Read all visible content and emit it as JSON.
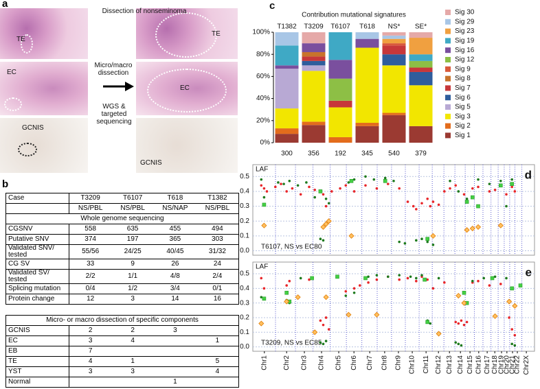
{
  "panel_a": {
    "label": "a",
    "title": "Dissection of nonseminoma",
    "left_labels": [
      "TE",
      "EC",
      "GCNIS"
    ],
    "arrow_text": "Micro/macro dissection",
    "sequencing_text": "WGS & targeted sequencing",
    "right_labels": [
      "TE",
      "EC",
      "GCNIS"
    ]
  },
  "panel_b": {
    "label": "b",
    "columns": [
      "Case",
      "T3209",
      "T6107",
      "T618",
      "T1382"
    ],
    "subheader": [
      null,
      "NS/PBL",
      "NS/PBL",
      "NS/NAP",
      "NS/PBL"
    ],
    "section1": "Whole genome sequencing",
    "rows1": [
      [
        "CGSNV",
        558,
        635,
        455,
        494
      ],
      [
        "Putative SNV",
        374,
        197,
        365,
        303
      ],
      [
        "Validated SNV/ tested",
        "55/56",
        "24/25",
        "40/45",
        "31/32"
      ],
      [
        "CG SV",
        33,
        9,
        26,
        24
      ],
      [
        "Validated SV/ tested",
        "2/2",
        "1/1",
        "4/8",
        "2/4"
      ],
      [
        "Splicing mutation",
        "0/4",
        "1/2",
        "3/4",
        "0/1"
      ],
      [
        "Protein change",
        12,
        3,
        14,
        16
      ]
    ],
    "section2": "Micro- or macro dissection of specific components",
    "rows2": [
      [
        "GCNIS",
        2,
        2,
        3,
        null
      ],
      [
        "EC",
        3,
        4,
        null,
        1
      ],
      [
        "EB",
        7,
        null,
        null,
        null
      ],
      [
        "TE",
        4,
        1,
        null,
        5
      ],
      [
        "YST",
        3,
        3,
        null,
        4
      ],
      [
        "Normal",
        null,
        null,
        1,
        null
      ]
    ]
  },
  "chart_data": [
    {
      "type": "stacked_bar",
      "label": "c",
      "title": "Contribution mutational signatures",
      "categories": [
        "T1382",
        "T3209",
        "T6107",
        "T618",
        "NS*",
        "SE*"
      ],
      "counts": [
        300,
        356,
        192,
        345,
        540,
        379
      ],
      "ylim": [
        0,
        100
      ],
      "yticks": [
        {
          "value": 0,
          "label": "0%"
        },
        {
          "value": 20,
          "label": "20%"
        },
        {
          "value": 40,
          "label": "40%"
        },
        {
          "value": 60,
          "label": "60%"
        },
        {
          "value": 80,
          "label": "80%"
        },
        {
          "value": 100,
          "label": "100%"
        }
      ],
      "series": [
        {
          "name": "Sig 1",
          "color": "#9b3a32",
          "values": [
            8,
            16,
            0,
            15,
            25,
            15
          ]
        },
        {
          "name": "Sig 2",
          "color": "#e36c1c",
          "values": [
            5,
            3,
            5,
            3,
            2,
            0
          ]
        },
        {
          "name": "Sig 3",
          "color": "#f2e600",
          "values": [
            18,
            46,
            27,
            68,
            43,
            37
          ]
        },
        {
          "name": "Sig 5",
          "color": "#b8a9d4",
          "values": [
            36,
            5,
            0,
            0,
            0,
            0
          ]
        },
        {
          "name": "Sig 6",
          "color": "#2f5d9c",
          "values": [
            0,
            4,
            0,
            0,
            10,
            12
          ]
        },
        {
          "name": "Sig 7",
          "color": "#c7373a",
          "values": [
            0,
            4,
            6,
            0,
            8,
            4
          ]
        },
        {
          "name": "Sig 8",
          "color": "#c8732c",
          "values": [
            0,
            4,
            0,
            0,
            0,
            0
          ]
        },
        {
          "name": "Sig 9",
          "color": "#d9593b",
          "values": [
            0,
            0,
            0,
            0,
            2,
            0
          ]
        },
        {
          "name": "Sig 12",
          "color": "#8dbf45",
          "values": [
            0,
            0,
            20,
            0,
            0,
            6
          ]
        },
        {
          "name": "Sig 16",
          "color": "#7a4f9e",
          "values": [
            3,
            8,
            17,
            8,
            0,
            0
          ]
        },
        {
          "name": "Sig 19",
          "color": "#3fa9c5",
          "values": [
            18,
            0,
            25,
            0,
            0,
            6
          ]
        },
        {
          "name": "Sig 23",
          "color": "#f0a040",
          "values": [
            0,
            0,
            0,
            0,
            4,
            15
          ]
        },
        {
          "name": "Sig 29",
          "color": "#a8c6e6",
          "values": [
            12,
            0,
            0,
            6,
            3,
            0
          ]
        },
        {
          "name": "Sig 30",
          "color": "#e5a9a8",
          "values": [
            0,
            10,
            0,
            0,
            3,
            5
          ]
        }
      ]
    },
    {
      "type": "scatter",
      "label": "d",
      "ylabel": "LAF",
      "annotation": "T6107, NS vs EC80",
      "xlim": [
        0,
        100
      ],
      "xticks": [
        4.1,
        12,
        18.3,
        24.4,
        30.5,
        35.9,
        41.5,
        46.8,
        51.7,
        56.6,
        61.5,
        65.9,
        69.8,
        73.7,
        77.1,
        80.2,
        83.2,
        85.9,
        88.3,
        90.2,
        92.2,
        93.9,
        97.1
      ],
      "xtick_labels_shown": false,
      "ylim": [
        -0.03,
        0.58
      ],
      "yticks": [
        {
          "value": 0,
          "label": "0.0"
        },
        0.1,
        0.2,
        0.3,
        0.4,
        0.5
      ],
      "grid": true,
      "series": [
        {
          "color": "#e8262a",
          "marker": "circle",
          "x": [
            3,
            4,
            5,
            8,
            10,
            12,
            14,
            17,
            20,
            22,
            25,
            26,
            28,
            31,
            33,
            36,
            40,
            44,
            48,
            52,
            55,
            57,
            58,
            60,
            62,
            63,
            64,
            66,
            68,
            70,
            72,
            75,
            78,
            80,
            84,
            86,
            88,
            90,
            92,
            93
          ],
          "values": [
            0.44,
            0.42,
            0.4,
            0.43,
            0.45,
            0.4,
            0.42,
            0.38,
            0.43,
            0.41,
            0.38,
            0.3,
            0.4,
            0.42,
            0.44,
            0.4,
            0.44,
            0.42,
            0.45,
            0.42,
            0.33,
            0.3,
            0.28,
            0.32,
            0.35,
            0.3,
            0.33,
            0.31,
            0.4,
            0.42,
            0.44,
            0.38,
            0.42,
            0.43,
            0.4,
            0.41,
            0.44,
            0.38,
            0.43,
            0.4
          ]
        },
        {
          "color": "#1e7a1e",
          "marker": "circle",
          "x": [
            3,
            4,
            9,
            11,
            13,
            16,
            19,
            22,
            24,
            25,
            26,
            27,
            34,
            36,
            40,
            43,
            47,
            50,
            52,
            54,
            58,
            60,
            62,
            64,
            70,
            73,
            76,
            80,
            84,
            88,
            90,
            92
          ],
          "values": [
            0.48,
            0.36,
            0.46,
            0.45,
            0.47,
            0.44,
            0.46,
            0.36,
            0.08,
            0.07,
            0.35,
            0.32,
            0.46,
            0.48,
            0.5,
            0.48,
            0.49,
            0.47,
            0.06,
            0.05,
            0.07,
            0.08,
            0.06,
            0.04,
            0.47,
            0.4,
            0.35,
            0.48,
            0.45,
            0.47,
            0.3,
            0.48
          ]
        },
        {
          "color": "#44d044",
          "marker": "square",
          "x": [
            4,
            24,
            35,
            47,
            62,
            76,
            78,
            80,
            88,
            92
          ],
          "values": [
            0.31,
            0.4,
            0.47,
            0.47,
            0.08,
            0.33,
            0.36,
            0.3,
            0.44,
            0.45
          ]
        },
        {
          "color": "#ffc060",
          "marker": "diamond",
          "x": [
            4,
            25,
            26,
            27,
            35,
            64,
            76,
            78,
            80,
            88
          ],
          "values": [
            0.17,
            0.16,
            0.18,
            0.2,
            0.1,
            0.1,
            0.14,
            0.15,
            0.16,
            0.17
          ]
        }
      ]
    },
    {
      "type": "scatter",
      "label": "e",
      "ylabel": "LAF",
      "annotation": "T3209, NS vs EC85",
      "xlim": [
        0,
        100
      ],
      "xticks": [
        {
          "value": 4.1,
          "label": "Chr1"
        },
        {
          "value": 12,
          "label": "Chr2"
        },
        {
          "value": 18.3,
          "label": "Chr3"
        },
        {
          "value": 24.4,
          "label": "Chr4"
        },
        {
          "value": 30.5,
          "label": "Chr5"
        },
        {
          "value": 35.9,
          "label": "Chr6"
        },
        {
          "value": 41.5,
          "label": "Chr7"
        },
        {
          "value": 46.8,
          "label": "Chr8"
        },
        {
          "value": 51.7,
          "label": "Chr9"
        },
        {
          "value": 56.6,
          "label": "Chr10"
        },
        {
          "value": 61.5,
          "label": "Chr11"
        },
        {
          "value": 65.9,
          "label": "Chr12"
        },
        {
          "value": 69.8,
          "label": "Chr13"
        },
        {
          "value": 73.7,
          "label": "Chr14"
        },
        {
          "value": 77.1,
          "label": "Chr15"
        },
        {
          "value": 80.2,
          "label": "Chr16"
        },
        {
          "value": 83.2,
          "label": "Chr17"
        },
        {
          "value": 85.9,
          "label": "Chr18"
        },
        {
          "value": 88.3,
          "label": "Chr19"
        },
        {
          "value": 90.2,
          "label": "Chr20"
        },
        {
          "value": 92.2,
          "label": "Chr21"
        },
        {
          "value": 93.9,
          "label": "Chr22"
        },
        {
          "value": 97.1,
          "label": "Chr2X"
        }
      ],
      "ylim": [
        -0.03,
        0.58
      ],
      "yticks": [
        {
          "value": 0,
          "label": "0.0"
        },
        0.1,
        0.2,
        0.3,
        0.4,
        0.5
      ],
      "grid": true,
      "series": [
        {
          "color": "#e8262a",
          "marker": "circle",
          "x": [
            3,
            4,
            12,
            13,
            20,
            24,
            25,
            26,
            27,
            33,
            36,
            38,
            41,
            44,
            48,
            52,
            55,
            58,
            60,
            62,
            64,
            68,
            72,
            73,
            74,
            75,
            76,
            78,
            80,
            84,
            88,
            91,
            92,
            93
          ],
          "values": [
            0.47,
            0.4,
            0.42,
            0.45,
            0.46,
            0.18,
            0.15,
            0.2,
            0.12,
            0.38,
            0.4,
            0.42,
            0.44,
            0.46,
            0.48,
            0.46,
            0.47,
            0.45,
            0.48,
            0.46,
            0.4,
            0.44,
            0.17,
            0.16,
            0.18,
            0.15,
            0.17,
            0.44,
            0.45,
            0.42,
            0.43,
            0.2,
            0.12,
            0.08
          ]
        },
        {
          "color": "#1e7a1e",
          "marker": "circle",
          "x": [
            3,
            4,
            12,
            13,
            17,
            24,
            25,
            26,
            33,
            36,
            41,
            44,
            48,
            52,
            56,
            58,
            60,
            62,
            63,
            66,
            72,
            73,
            74,
            78,
            82,
            86,
            90,
            92,
            93
          ],
          "values": [
            0.34,
            0.33,
            0.32,
            0.3,
            0.47,
            0.03,
            0.02,
            0.04,
            0.35,
            0.37,
            0.48,
            0.49,
            0.48,
            0.49,
            0.48,
            0.47,
            0.49,
            0.18,
            0.16,
            0.47,
            0.03,
            0.02,
            0.01,
            0.45,
            0.47,
            0.48,
            0.47,
            0.02,
            0.01
          ]
        },
        {
          "color": "#44d044",
          "marker": "square",
          "x": [
            4,
            12,
            13,
            21,
            30,
            40,
            61,
            62,
            75,
            76,
            85,
            92,
            95
          ],
          "values": [
            0.33,
            0.37,
            0.31,
            0.47,
            0.48,
            0.47,
            0.46,
            0.17,
            0.37,
            0.3,
            0.47,
            0.4,
            0.42
          ]
        },
        {
          "color": "#ffc060",
          "marker": "diamond",
          "x": [
            3,
            12,
            16,
            22,
            26,
            34,
            44,
            66,
            73,
            75,
            86,
            91,
            93
          ],
          "values": [
            0.16,
            0.31,
            0.34,
            0.1,
            0.34,
            0.22,
            0.22,
            0.09,
            0.35,
            0.3,
            0.21,
            0.31,
            0.28
          ]
        }
      ]
    }
  ]
}
